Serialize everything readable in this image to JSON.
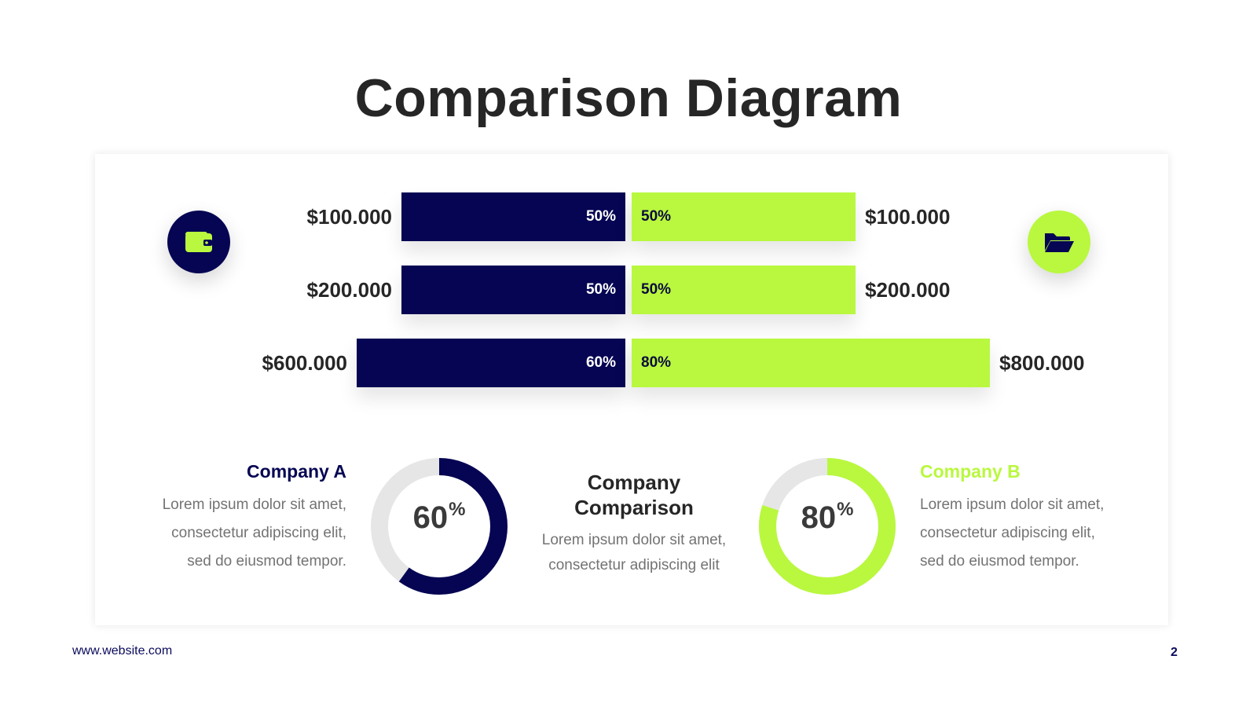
{
  "slide": {
    "title": "Comparison Diagram",
    "footer_url": "www.website.com",
    "page_number": "2"
  },
  "colors": {
    "company_a": "#050553",
    "company_b": "#b9f83f",
    "track": "#e6e6e6",
    "text_dark": "#262626",
    "text_muted": "#737373"
  },
  "icons": {
    "left": "wallet-icon",
    "right": "folder-open-icon"
  },
  "chart_data": [
    {
      "type": "bar",
      "orientation": "horizontal-diverging",
      "categories": [
        "row-1",
        "row-2",
        "row-3"
      ],
      "series": [
        {
          "name": "Company A",
          "values": [
            50,
            50,
            60
          ],
          "labels": [
            "50%",
            "50%",
            "60%"
          ],
          "amounts": [
            "$100.000",
            "$200.000",
            "$600.000"
          ]
        },
        {
          "name": "Company B",
          "values": [
            50,
            50,
            80
          ],
          "labels": [
            "50%",
            "50%",
            "80%"
          ],
          "amounts": [
            "$100.000",
            "$200.000",
            "$800.000"
          ]
        }
      ]
    },
    {
      "type": "pie",
      "variant": "donut",
      "series": [
        {
          "name": "Company A",
          "value": 60,
          "label": "60",
          "unit": "%"
        }
      ]
    },
    {
      "type": "pie",
      "variant": "donut",
      "series": [
        {
          "name": "Company B",
          "value": 80,
          "label": "80",
          "unit": "%"
        }
      ]
    }
  ],
  "company_a": {
    "name": "Company A",
    "desc": [
      "Lorem ipsum dolor sit amet,",
      "consectetur adipiscing elit,",
      "sed do eiusmod tempor."
    ]
  },
  "company_b": {
    "name": "Company B",
    "desc": [
      "Lorem ipsum dolor sit amet,",
      "consectetur adipiscing elit,",
      "sed do eiusmod tempor."
    ]
  },
  "center": {
    "title_line1": "Company",
    "title_line2": "Comparison",
    "desc_line1": "Lorem ipsum dolor sit amet,",
    "desc_line2": "consectetur adipiscing elit"
  }
}
